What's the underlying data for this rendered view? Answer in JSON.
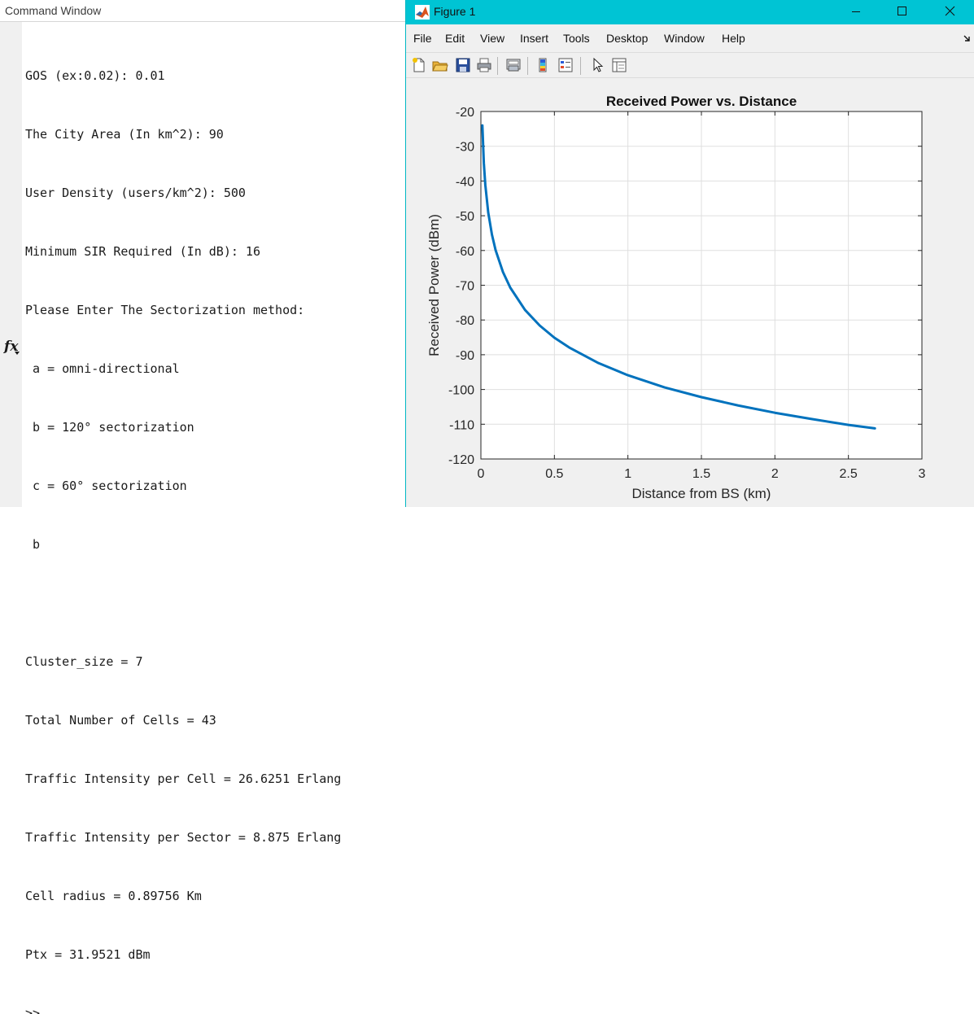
{
  "command_window": {
    "title": "Command Window",
    "lines": [
      "GOS (ex:0.02): 0.01",
      "The City Area (In km^2): 90",
      "User Density (users/km^2): 500",
      "Minimum SIR Required (In dB): 16",
      "Please Enter The Sectorization method:",
      " a = omni-directional",
      " b = 120° sectorization",
      " c = 60° sectorization",
      " b",
      "",
      "Cluster_size = 7",
      "Total Number of Cells = 43",
      "Traffic Intensity per Cell = 26.6251 Erlang",
      "Traffic Intensity per Sector = 8.875 Erlang",
      "Cell radius = 0.89756 Km",
      "Ptx = 31.9521 dBm"
    ],
    "prompt_icon": "fx",
    "prompt": ">>"
  },
  "figure": {
    "title": "Figure 1",
    "menu": [
      "File",
      "Edit",
      "View",
      "Insert",
      "Tools",
      "Desktop",
      "Window",
      "Help"
    ],
    "toolbar_icons": [
      "new-figure-icon",
      "open-folder-icon",
      "save-icon",
      "print-icon",
      "print-preview-icon",
      "colorbar-icon",
      "legend-icon",
      "pointer-icon",
      "property-inspector-icon"
    ],
    "window_controls": [
      "minimize-icon",
      "maximize-icon",
      "close-icon"
    ]
  },
  "chart_data": {
    "type": "line",
    "title": "Received Power vs. Distance",
    "xlabel": "Distance from BS (km)",
    "ylabel": "Received Power (dBm)",
    "xlim": [
      0,
      3
    ],
    "ylim": [
      -120,
      -20
    ],
    "xticks": [
      0,
      0.5,
      1,
      1.5,
      2,
      2.5,
      3
    ],
    "xtick_labels": [
      "0",
      "0.5",
      "1",
      "1.5",
      "2",
      "2.5",
      "3"
    ],
    "yticks": [
      -120,
      -110,
      -100,
      -90,
      -80,
      -70,
      -60,
      -50,
      -40,
      -30,
      -20
    ],
    "ytick_labels": [
      "-120",
      "-110",
      "-100",
      "-90",
      "-80",
      "-70",
      "-60",
      "-50",
      "-40",
      "-30",
      "-20"
    ],
    "grid": true,
    "line_color": "#0072BD",
    "series": [
      {
        "x": [
          0.01,
          0.02,
          0.03,
          0.05,
          0.075,
          0.1,
          0.15,
          0.2,
          0.3,
          0.4,
          0.5,
          0.6,
          0.8,
          1.0,
          1.25,
          1.5,
          1.75,
          2.0,
          2.25,
          2.5,
          2.68
        ],
        "y": [
          -24,
          -34.8,
          -41.1,
          -49.1,
          -55.4,
          -59.9,
          -66.2,
          -70.7,
          -77.1,
          -81.6,
          -85.1,
          -87.9,
          -92.4,
          -95.9,
          -99.4,
          -102.2,
          -104.6,
          -106.7,
          -108.5,
          -110.2,
          -111.2
        ]
      }
    ]
  }
}
